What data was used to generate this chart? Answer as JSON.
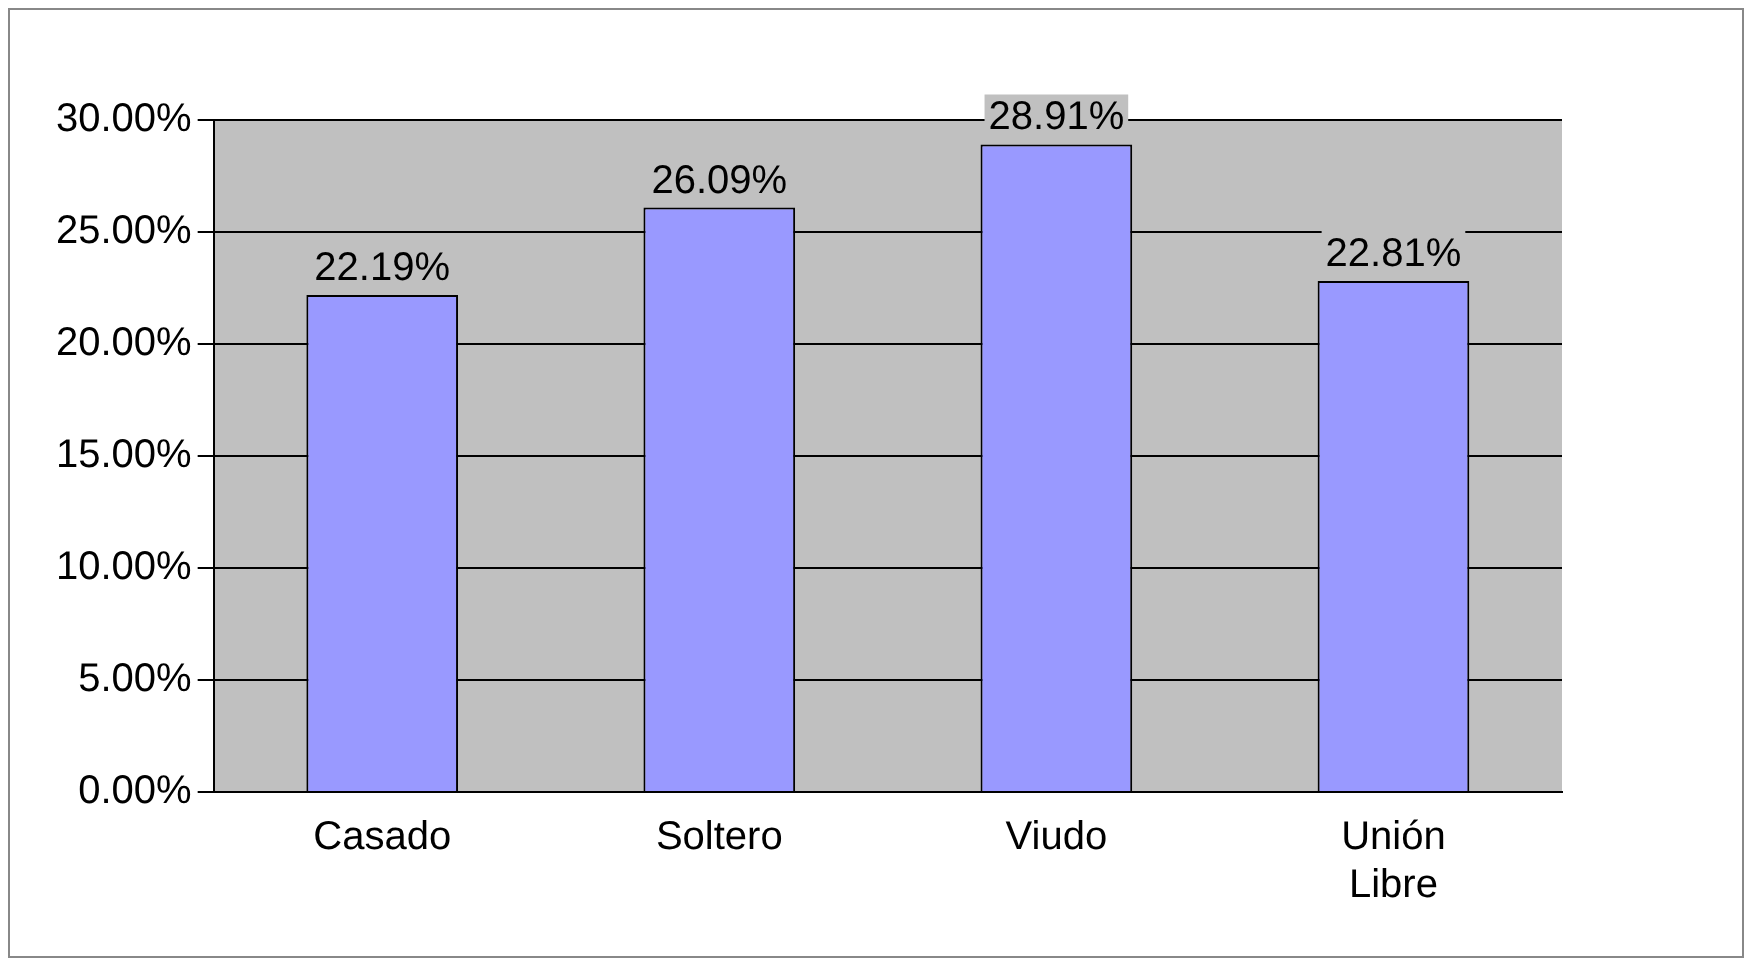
{
  "chart_data": {
    "type": "bar",
    "categories": [
      "Casado",
      "Soltero",
      "Viudo",
      "Unión Libre"
    ],
    "values": [
      22.19,
      26.09,
      28.91,
      22.81
    ],
    "value_labels": [
      "22.19%",
      "26.09%",
      "28.91%",
      "22.81%"
    ],
    "color": "#9999ff",
    "ylim": [
      0,
      30
    ],
    "yticks": [
      {
        "value": 0,
        "label": "0.00%"
      },
      {
        "value": 5,
        "label": "5.00%"
      },
      {
        "value": 10,
        "label": "10.00%"
      },
      {
        "value": 15,
        "label": "15.00%"
      },
      {
        "value": 20,
        "label": "20.00%"
      },
      {
        "value": 25,
        "label": "25.00%"
      },
      {
        "value": 30,
        "label": "30.00%"
      }
    ],
    "grid": "y"
  }
}
